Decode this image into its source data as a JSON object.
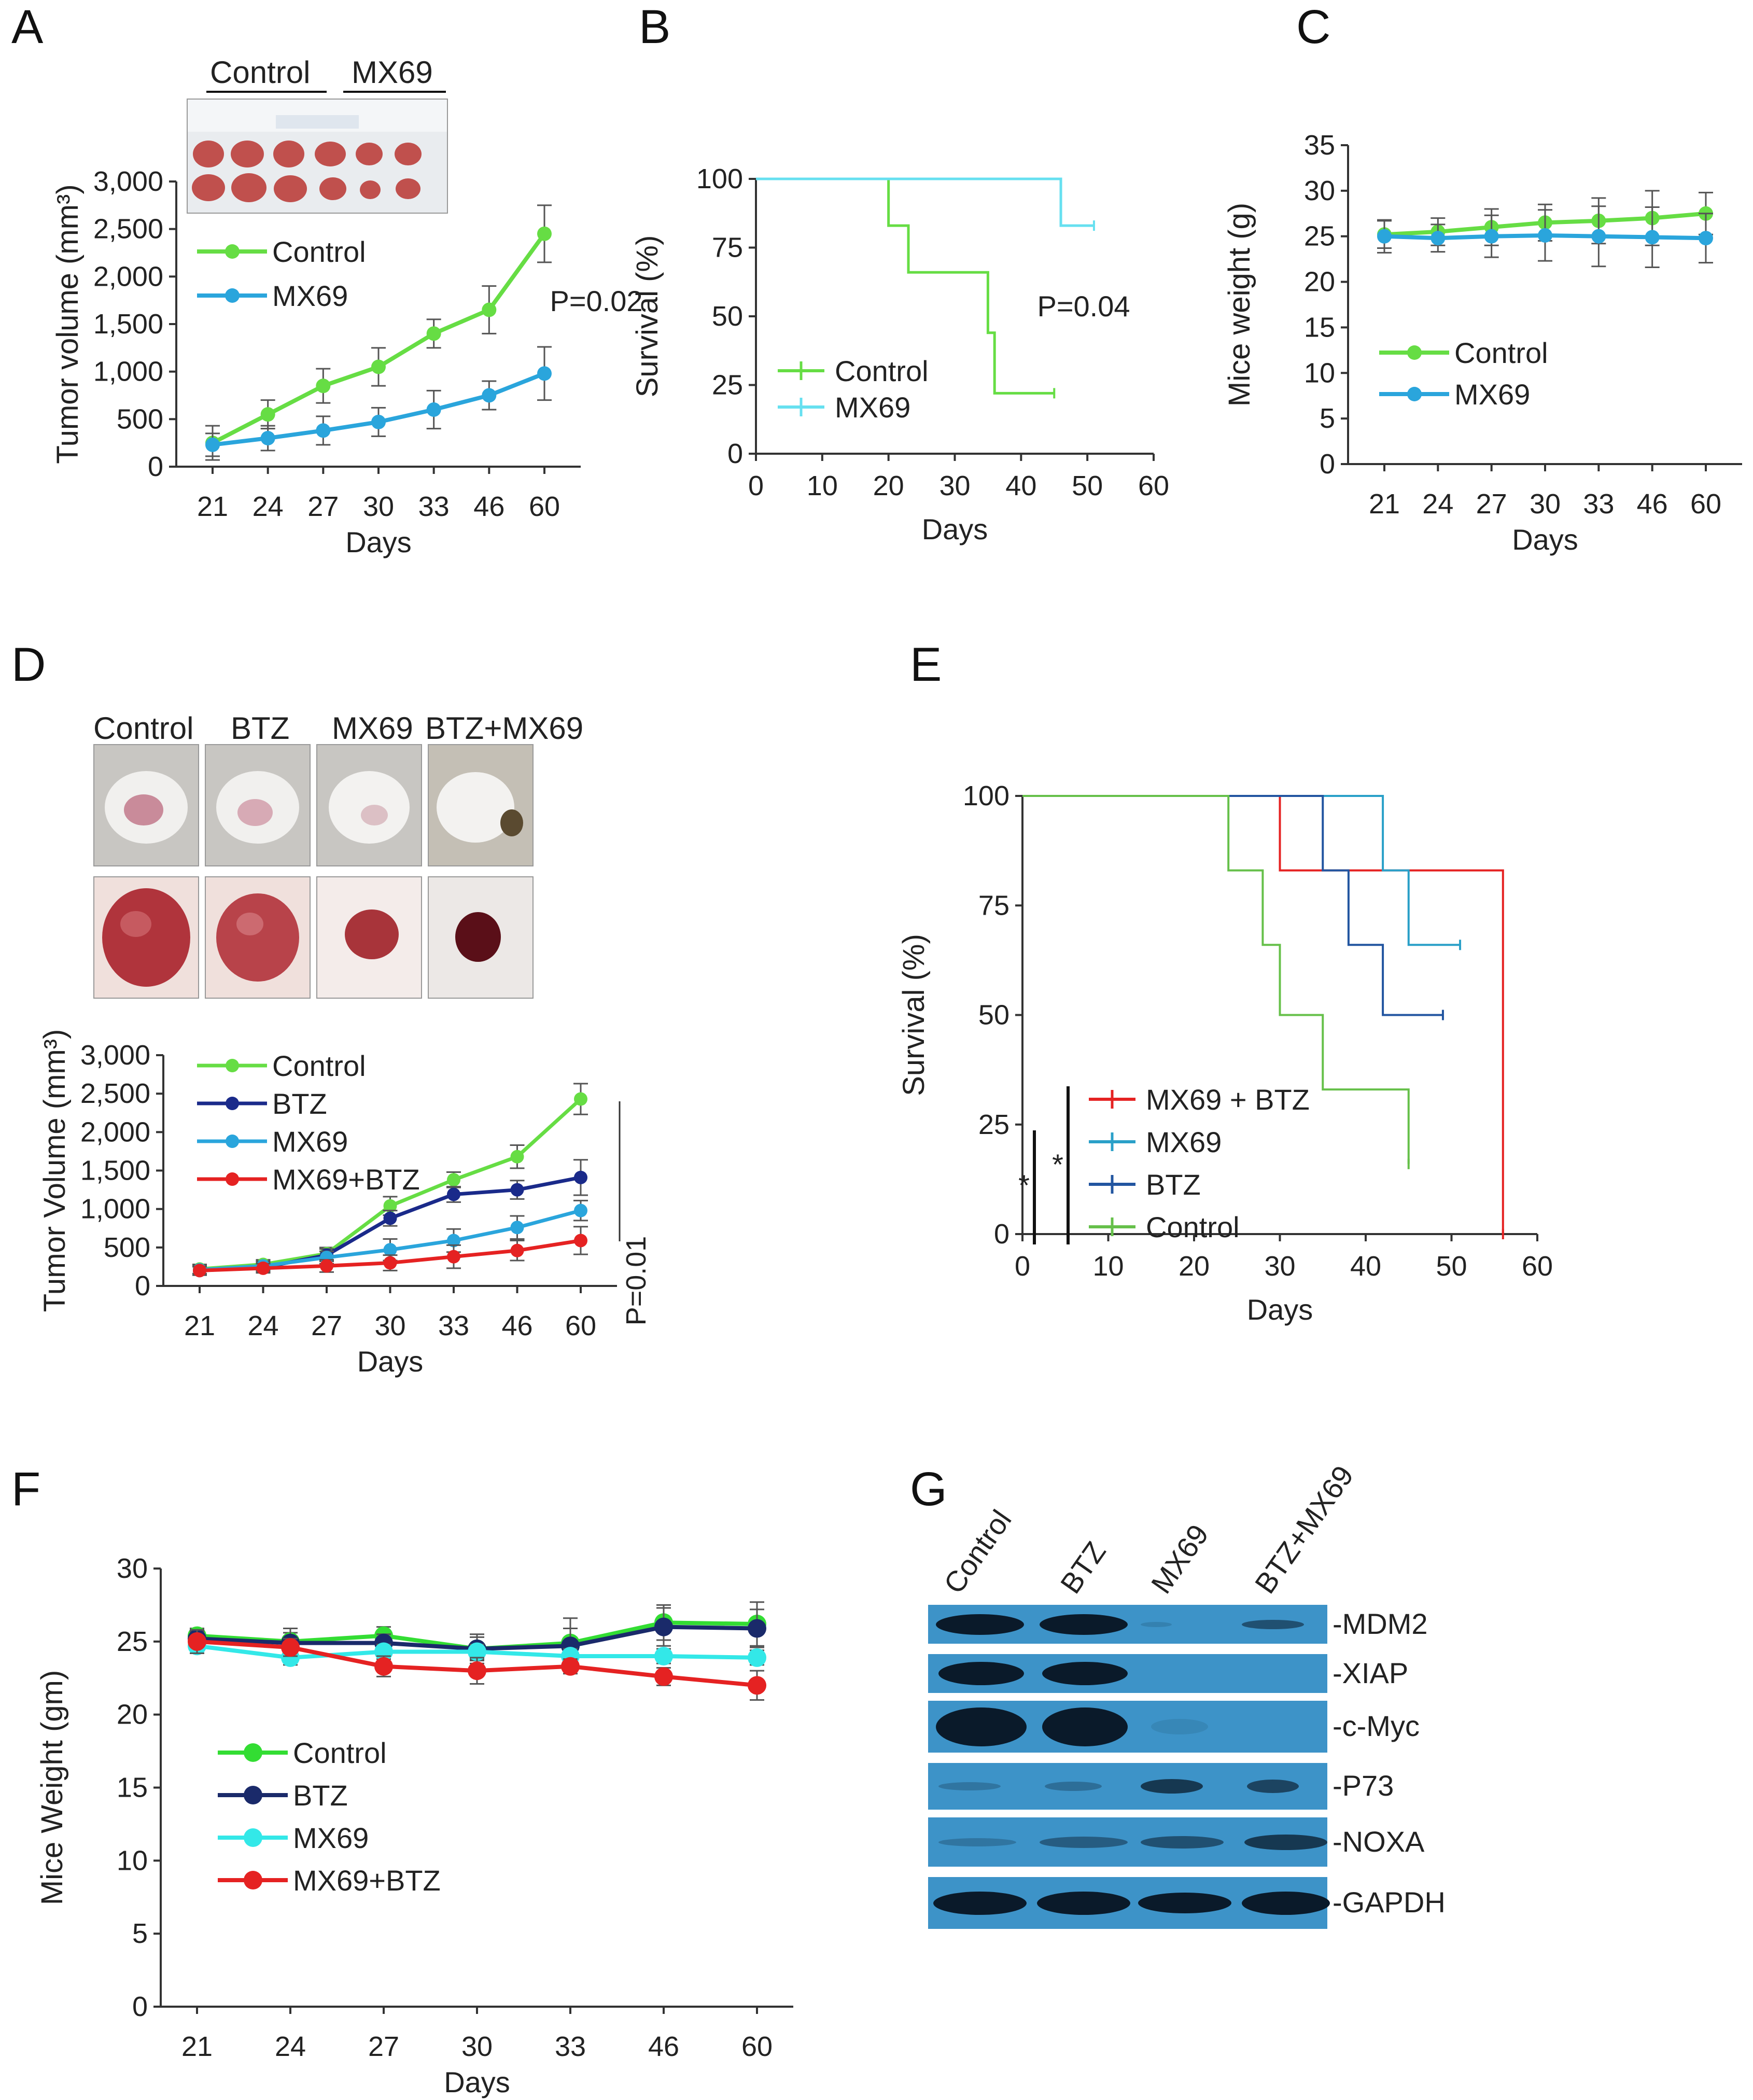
{
  "panels": {
    "A": "A",
    "B": "B",
    "C": "C",
    "D": "D",
    "E": "E",
    "F": "F",
    "G": "G"
  },
  "colors": {
    "control": "#66dd44",
    "mx69": "#2aa5dc",
    "mx69_light": "#66e0f0",
    "btz": "#1a2a8a",
    "combo": "#e52222",
    "btz_e": "#2255a0",
    "mx69_e": "#2aa0c8",
    "control_e": "#66c04a"
  },
  "photo_A": {
    "group1": "Control",
    "group2": "MX69"
  },
  "photo_D": {
    "labels": [
      "Control",
      "BTZ",
      "MX69",
      "BTZ+MX69"
    ]
  },
  "blot": {
    "lanes": [
      "Control",
      "BTZ",
      "MX69",
      "BTZ+MX69"
    ],
    "proteins": [
      "-MDM2",
      "-XIAP",
      "-c-Myc",
      "-P73",
      "-NOXA",
      "-GAPDH"
    ]
  },
  "chart_data": [
    {
      "id": "A",
      "type": "line",
      "title": "",
      "categories": [
        "21",
        "24",
        "27",
        "30",
        "33",
        "46",
        "60"
      ],
      "xlabel": "Days",
      "ylabel": "Tumor volume (mm³)",
      "ylim": [
        0,
        3000
      ],
      "yticks": [
        "0",
        "500",
        "1,000",
        "1,500",
        "2,000",
        "2,500",
        "3,000"
      ],
      "ytick_values": [
        0,
        500,
        1000,
        1500,
        2000,
        2500,
        3000
      ],
      "series": [
        {
          "name": "Control",
          "color": "#66dd44",
          "values": [
            250,
            550,
            850,
            1050,
            1400,
            1650,
            2450
          ],
          "err": [
            180,
            150,
            180,
            200,
            150,
            250,
            300
          ]
        },
        {
          "name": "MX69",
          "color": "#2aa5dc",
          "values": [
            230,
            300,
            380,
            470,
            600,
            750,
            980
          ],
          "err": [
            120,
            130,
            150,
            150,
            200,
            150,
            280
          ]
        }
      ],
      "annotation": "P=0.02"
    },
    {
      "id": "B",
      "type": "line",
      "xlabel": "Days",
      "ylabel": "Survival (%)",
      "xlim": [
        0,
        60
      ],
      "xticks": [
        "0",
        "10",
        "20",
        "30",
        "40",
        "50",
        "60"
      ],
      "ylim": [
        0,
        100
      ],
      "yticks": [
        "0",
        "25",
        "50",
        "75",
        "100"
      ],
      "series": [
        {
          "name": "Control",
          "color": "#66dd44",
          "steps": [
            [
              0,
              100
            ],
            [
              20,
              100
            ],
            [
              20,
              83
            ],
            [
              23,
              83
            ],
            [
              23,
              66
            ],
            [
              35,
              66
            ],
            [
              35,
              44
            ],
            [
              36,
              44
            ],
            [
              36,
              22
            ],
            [
              45,
              22
            ]
          ]
        },
        {
          "name": "MX69",
          "color": "#66e0f0",
          "steps": [
            [
              0,
              100
            ],
            [
              46,
              100
            ],
            [
              46,
              83
            ],
            [
              51,
              83
            ]
          ]
        }
      ],
      "annotation": "P=0.04"
    },
    {
      "id": "C",
      "type": "line",
      "categories": [
        "21",
        "24",
        "27",
        "30",
        "33",
        "46",
        "60"
      ],
      "xlabel": "Days",
      "ylabel": "Mice weight (g)",
      "ylim": [
        0,
        35
      ],
      "yticks": [
        "0",
        "5",
        "10",
        "15",
        "20",
        "25",
        "30",
        "35"
      ],
      "ytick_values": [
        0,
        5,
        10,
        15,
        20,
        25,
        30,
        35
      ],
      "series": [
        {
          "name": "Control",
          "color": "#66dd44",
          "values": [
            25.2,
            25.5,
            26,
            26.5,
            26.7,
            27,
            27.5
          ],
          "err": [
            1.5,
            1.5,
            2,
            2,
            2.5,
            3,
            2.3
          ]
        },
        {
          "name": "MX69",
          "color": "#2aa5dc",
          "values": [
            25,
            24.8,
            25,
            25.1,
            25,
            24.9,
            24.8
          ],
          "err": [
            1.8,
            1.5,
            2.3,
            2.8,
            3.3,
            3.3,
            2.7
          ]
        }
      ]
    },
    {
      "id": "D",
      "type": "line",
      "categories": [
        "21",
        "24",
        "27",
        "30",
        "33",
        "46",
        "60"
      ],
      "xlabel": "Days",
      "ylabel": "Tumor Volume (mm³)",
      "ylim": [
        0,
        3000
      ],
      "yticks": [
        "0",
        "500",
        "1,000",
        "1,500",
        "2,000",
        "2,500",
        "3,000"
      ],
      "ytick_values": [
        0,
        500,
        1000,
        1500,
        2000,
        2500,
        3000
      ],
      "series": [
        {
          "name": "Control",
          "color": "#66dd44",
          "values": [
            220,
            280,
            420,
            1040,
            1380,
            1680,
            2430
          ],
          "err": [
            60,
            60,
            80,
            120,
            100,
            150,
            200
          ]
        },
        {
          "name": "BTZ",
          "color": "#1a2a8a",
          "values": [
            200,
            240,
            400,
            880,
            1190,
            1250,
            1410
          ],
          "err": [
            60,
            60,
            80,
            100,
            100,
            120,
            230
          ]
        },
        {
          "name": "MX69",
          "color": "#2aa5dc",
          "values": [
            210,
            260,
            370,
            470,
            590,
            760,
            980
          ],
          "err": [
            60,
            60,
            80,
            140,
            150,
            150,
            130
          ]
        },
        {
          "name": "MX69+BTZ",
          "color": "#e52222",
          "values": [
            200,
            230,
            260,
            300,
            380,
            460,
            590
          ],
          "err": [
            50,
            60,
            80,
            100,
            150,
            130,
            180
          ]
        }
      ],
      "annotation": "P=0.01"
    },
    {
      "id": "E",
      "type": "line",
      "xlabel": "Days",
      "ylabel": "Survival (%)",
      "xlim": [
        0,
        60
      ],
      "xticks": [
        "0",
        "10",
        "20",
        "30",
        "40",
        "50",
        "60"
      ],
      "ylim": [
        0,
        100
      ],
      "yticks": [
        "0",
        "25",
        "50",
        "75",
        "100"
      ],
      "series": [
        {
          "name": "MX69 + BTZ",
          "color": "#e52222",
          "steps": [
            [
              30,
              100
            ],
            [
              30,
              83
            ],
            [
              56,
              83
            ],
            [
              56,
              0
            ]
          ]
        },
        {
          "name": "MX69",
          "color": "#2aa0c8",
          "steps": [
            [
              0,
              100
            ],
            [
              42,
              100
            ],
            [
              42,
              83
            ],
            [
              45,
              83
            ],
            [
              45,
              66
            ],
            [
              51,
              66
            ]
          ]
        },
        {
          "name": "BTZ",
          "color": "#2255a0",
          "steps": [
            [
              0,
              100
            ],
            [
              35,
              100
            ],
            [
              35,
              83
            ],
            [
              38,
              83
            ],
            [
              38,
              66
            ],
            [
              42,
              66
            ],
            [
              42,
              50
            ],
            [
              49,
              50
            ]
          ]
        },
        {
          "name": "Control",
          "color": "#66c04a",
          "steps": [
            [
              0,
              100
            ],
            [
              24,
              100
            ],
            [
              24,
              83
            ],
            [
              28,
              83
            ],
            [
              28,
              66
            ],
            [
              30,
              66
            ],
            [
              30,
              50
            ],
            [
              35,
              50
            ],
            [
              35,
              33
            ],
            [
              45,
              33
            ],
            [
              45,
              16
            ]
          ]
        }
      ],
      "sig": [
        "*",
        "*"
      ]
    },
    {
      "id": "F",
      "type": "line",
      "categories": [
        "21",
        "24",
        "27",
        "30",
        "33",
        "46",
        "60"
      ],
      "xlabel": "Days",
      "ylabel": "Mice Weight (gm)",
      "ylim": [
        0,
        30
      ],
      "yticks": [
        "0",
        "5",
        "10",
        "15",
        "20",
        "25",
        "30"
      ],
      "ytick_values": [
        0,
        5,
        10,
        15,
        20,
        25,
        30
      ],
      "series": [
        {
          "name": "Control",
          "color": "#33dd33",
          "values": [
            25.4,
            25,
            25.4,
            24.5,
            24.9,
            26.3,
            26.2
          ],
          "err": [
            0.5,
            0.6,
            0.6,
            0.8,
            1.7,
            1.2,
            1.5
          ]
        },
        {
          "name": "BTZ",
          "color": "#1a2a6a",
          "values": [
            25.2,
            24.9,
            24.9,
            24.5,
            24.7,
            26,
            25.9
          ],
          "err": [
            0.5,
            1,
            0.6,
            1,
            1.2,
            1.3,
            1.3
          ]
        },
        {
          "name": "MX69",
          "color": "#33e8e8",
          "values": [
            24.7,
            23.9,
            24.3,
            24.3,
            24,
            24,
            23.9
          ],
          "err": [
            0.5,
            0.5,
            0.5,
            0.5,
            0.5,
            0.5,
            0.5
          ]
        },
        {
          "name": "MX69+BTZ",
          "color": "#e52222",
          "values": [
            25,
            24.6,
            23.3,
            23,
            23.3,
            22.6,
            22
          ],
          "err": [
            0.8,
            0.6,
            0.7,
            0.9,
            0.5,
            0.6,
            1
          ]
        }
      ]
    }
  ]
}
